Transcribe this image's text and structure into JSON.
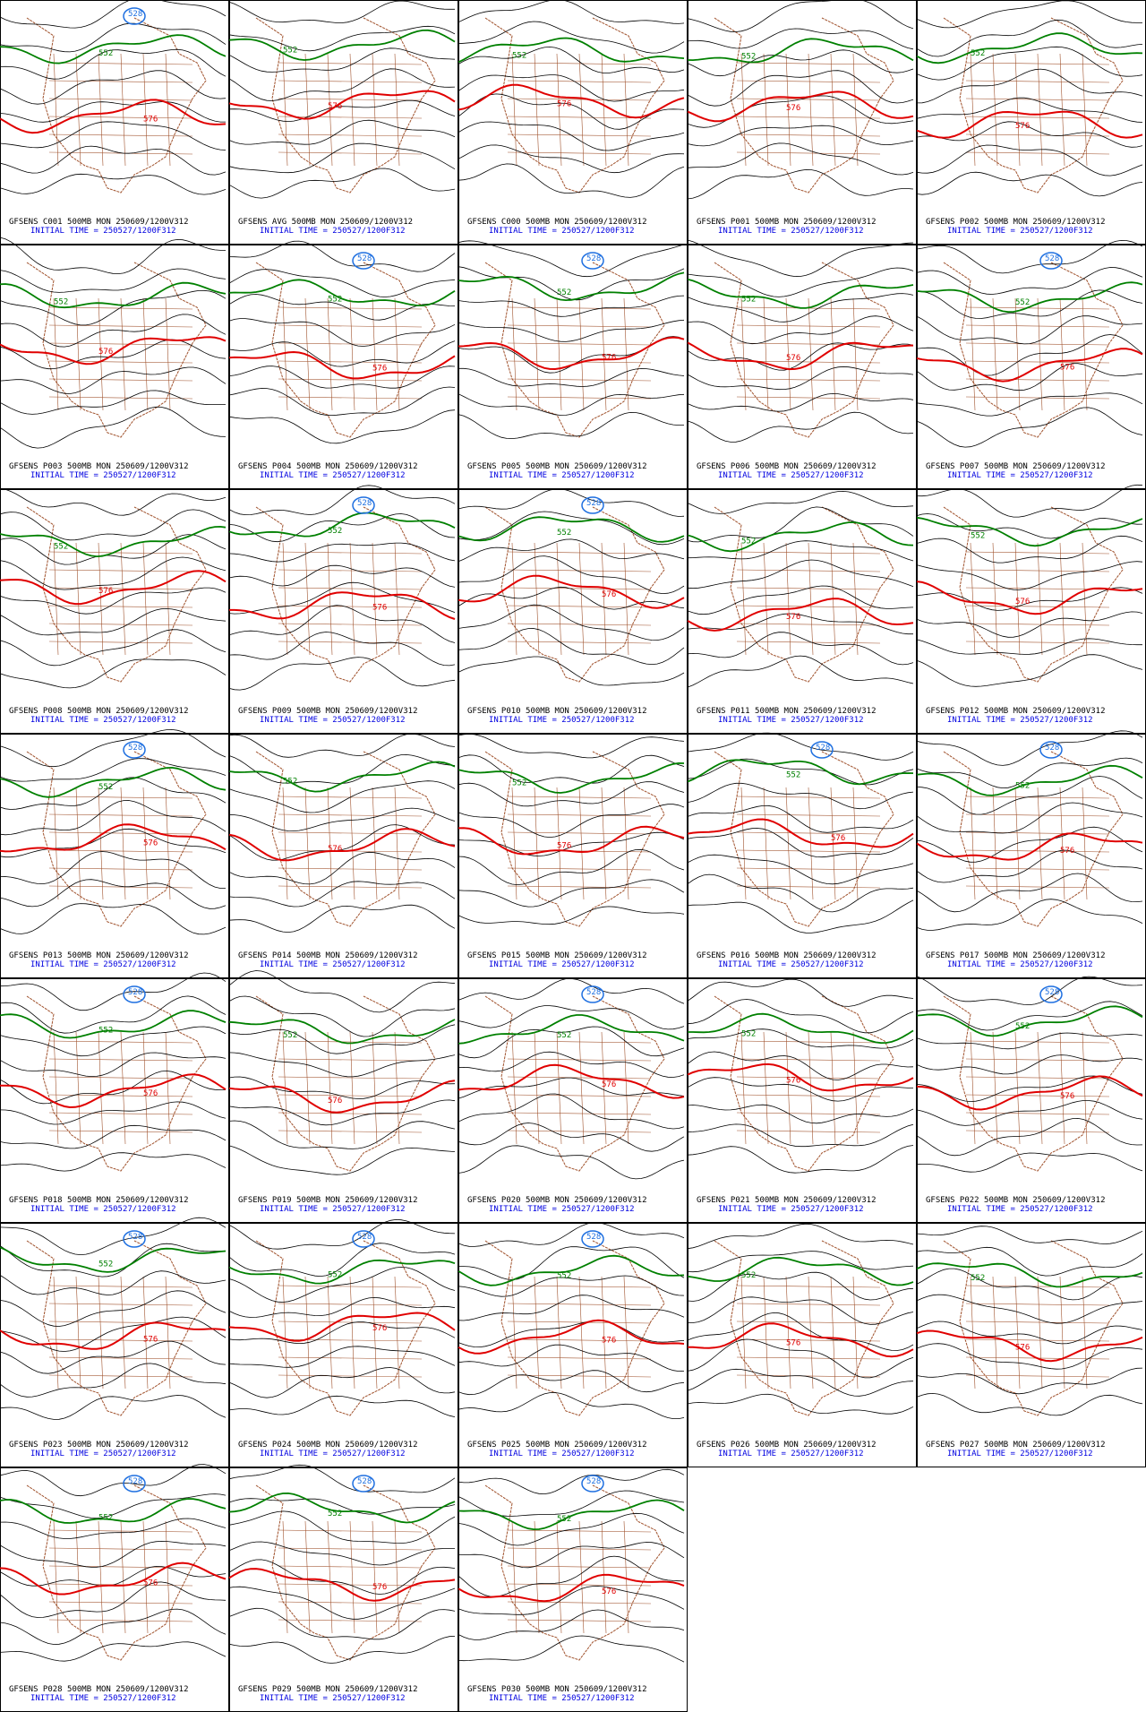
{
  "panels": [
    {
      "title": "GFSENS C001 500MB MON 250609/1200V312",
      "init": "INITIAL TIME = 250527/1200F312",
      "contours": [
        "528",
        "552",
        "576"
      ]
    },
    {
      "title": "GFSENS AVG 500MB MON 250609/1200V312",
      "init": "INITIAL TIME = 250527/1200F312",
      "contours": [
        "552",
        "576"
      ]
    },
    {
      "title": "GFSENS C000 500MB MON 250609/1200V312",
      "init": "INITIAL TIME = 250527/1200F312",
      "contours": [
        "552",
        "576"
      ]
    },
    {
      "title": "GFSENS P001 500MB MON 250609/1200V312",
      "init": "INITIAL TIME = 250527/1200F312",
      "contours": [
        "552",
        "576"
      ]
    },
    {
      "title": "GFSENS P002 500MB MON 250609/1200V312",
      "init": "INITIAL TIME = 250527/1200F312",
      "contours": [
        "552",
        "576"
      ]
    },
    {
      "title": "GFSENS P003 500MB MON 250609/1200V312",
      "init": "INITIAL TIME = 250527/1200F312",
      "contours": [
        "552",
        "576"
      ]
    },
    {
      "title": "GFSENS P004 500MB MON 250609/1200V312",
      "init": "INITIAL TIME = 250527/1200F312",
      "contours": [
        "528",
        "552",
        "576"
      ]
    },
    {
      "title": "GFSENS P005 500MB MON 250609/1200V312",
      "init": "INITIAL TIME = 250527/1200F312",
      "contours": [
        "528",
        "552",
        "576"
      ]
    },
    {
      "title": "GFSENS P006 500MB MON 250609/1200V312",
      "init": "INITIAL TIME = 250527/1200F312",
      "contours": [
        "552",
        "576"
      ]
    },
    {
      "title": "GFSENS P007 500MB MON 250609/1200V312",
      "init": "INITIAL TIME = 250527/1200F312",
      "contours": [
        "528",
        "552",
        "576"
      ]
    },
    {
      "title": "GFSENS P008 500MB MON 250609/1200V312",
      "init": "INITIAL TIME = 250527/1200F312",
      "contours": [
        "552",
        "576"
      ]
    },
    {
      "title": "GFSENS P009 500MB MON 250609/1200V312",
      "init": "INITIAL TIME = 250527/1200F312",
      "contours": [
        "528",
        "552",
        "576"
      ]
    },
    {
      "title": "GFSENS P010 500MB MON 250609/1200V312",
      "init": "INITIAL TIME = 250527/1200F312",
      "contours": [
        "528",
        "552",
        "576"
      ]
    },
    {
      "title": "GFSENS P011 500MB MON 250609/1200V312",
      "init": "INITIAL TIME = 250527/1200F312",
      "contours": [
        "552",
        "576"
      ]
    },
    {
      "title": "GFSENS P012 500MB MON 250609/1200V312",
      "init": "INITIAL TIME = 250527/1200F312",
      "contours": [
        "552",
        "576"
      ]
    },
    {
      "title": "GFSENS P013 500MB MON 250609/1200V312",
      "init": "INITIAL TIME = 250527/1200F312",
      "contours": [
        "528",
        "552",
        "576"
      ]
    },
    {
      "title": "GFSENS P014 500MB MON 250609/1200V312",
      "init": "INITIAL TIME = 250527/1200F312",
      "contours": [
        "552",
        "576"
      ]
    },
    {
      "title": "GFSENS P015 500MB MON 250609/1200V312",
      "init": "INITIAL TIME = 250527/1200F312",
      "contours": [
        "552",
        "576"
      ]
    },
    {
      "title": "GFSENS P016 500MB MON 250609/1200V312",
      "init": "INITIAL TIME = 250527/1200F312",
      "contours": [
        "528",
        "552",
        "576"
      ]
    },
    {
      "title": "GFSENS P017 500MB MON 250609/1200V312",
      "init": "INITIAL TIME = 250527/1200F312",
      "contours": [
        "528",
        "552",
        "576"
      ]
    },
    {
      "title": "GFSENS P018 500MB MON 250609/1200V312",
      "init": "INITIAL TIME = 250527/1200F312",
      "contours": [
        "528",
        "552",
        "576"
      ]
    },
    {
      "title": "GFSENS P019 500MB MON 250609/1200V312",
      "init": "INITIAL TIME = 250527/1200F312",
      "contours": [
        "552",
        "576"
      ]
    },
    {
      "title": "GFSENS P020 500MB MON 250609/1200V312",
      "init": "INITIAL TIME = 250527/1200F312",
      "contours": [
        "528",
        "552",
        "576"
      ]
    },
    {
      "title": "GFSENS P021 500MB MON 250609/1200V312",
      "init": "INITIAL TIME = 250527/1200F312",
      "contours": [
        "552",
        "576"
      ]
    },
    {
      "title": "GFSENS P022 500MB MON 250609/1200V312",
      "init": "INITIAL TIME = 250527/1200F312",
      "contours": [
        "528",
        "552",
        "576"
      ]
    },
    {
      "title": "GFSENS P023 500MB MON 250609/1200V312",
      "init": "INITIAL TIME = 250527/1200F312",
      "contours": [
        "528",
        "552",
        "576"
      ]
    },
    {
      "title": "GFSENS P024 500MB MON 250609/1200V312",
      "init": "INITIAL TIME = 250527/1200F312",
      "contours": [
        "528",
        "552",
        "576"
      ]
    },
    {
      "title": "GFSENS P025 500MB MON 250609/1200V312",
      "init": "INITIAL TIME = 250527/1200F312",
      "contours": [
        "528",
        "552",
        "576"
      ]
    },
    {
      "title": "GFSENS P026 500MB MON 250609/1200V312",
      "init": "INITIAL TIME = 250527/1200F312",
      "contours": [
        "552",
        "576"
      ]
    },
    {
      "title": "GFSENS P027 500MB MON 250609/1200V312",
      "init": "INITIAL TIME = 250527/1200F312",
      "contours": [
        "552",
        "576"
      ]
    },
    {
      "title": "GFSENS P028 500MB MON 250609/1200V312",
      "init": "INITIAL TIME = 250527/1200F312",
      "contours": [
        "528",
        "552",
        "576"
      ]
    },
    {
      "title": "GFSENS P029 500MB MON 250609/1200V312",
      "init": "INITIAL TIME = 250527/1200F312",
      "contours": [
        "528",
        "552",
        "576"
      ]
    },
    {
      "title": "GFSENS P030 500MB MON 250609/1200V312",
      "init": "INITIAL TIME = 250527/1200F312",
      "contours": [
        "528",
        "552",
        "576"
      ]
    }
  ]
}
